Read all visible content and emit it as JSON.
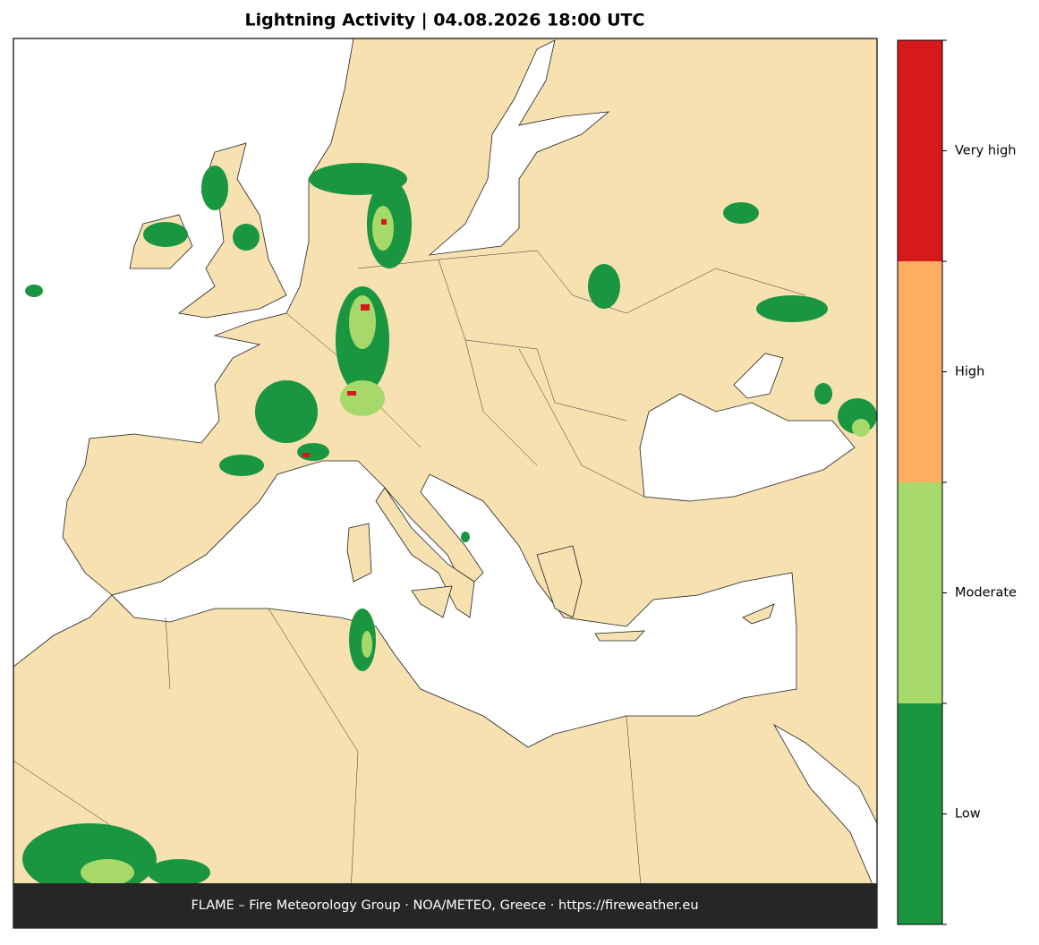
{
  "title": "Lightning Activity  |  04.08.2026 18:00 UTC",
  "footer": "FLAME – Fire Meteorology Group · NOA/METEO, Greece · https://fireweather.eu",
  "legend": {
    "levels": [
      {
        "label": "Low",
        "color": "#1a9641"
      },
      {
        "label": "Moderate",
        "color": "#a6d96a"
      },
      {
        "label": "High",
        "color": "#fdae61"
      },
      {
        "label": "Very high",
        "color": "#d7191c"
      }
    ]
  }
}
